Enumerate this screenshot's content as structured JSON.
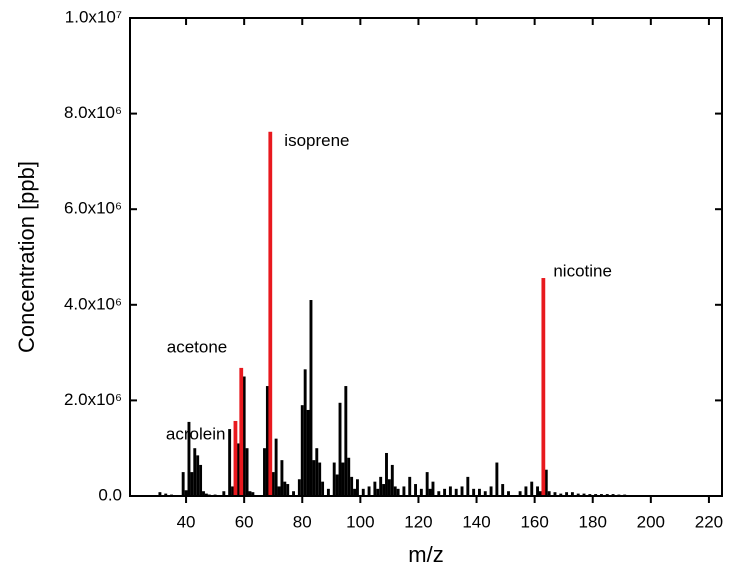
{
  "chart_data": {
    "type": "bar",
    "x_label": "m/z",
    "y_label": "Concentration [ppb]",
    "xlim": [
      20.7,
      224.5
    ],
    "ylim": [
      0,
      10000000
    ],
    "xticks": [
      40,
      60,
      80,
      100,
      120,
      140,
      160,
      180,
      200,
      220
    ],
    "yticks": [
      {
        "value": 0,
        "label": "0.0"
      },
      {
        "value": 2000000,
        "label": "2.0x10⁶"
      },
      {
        "value": 4000000,
        "label": "4.0x10⁶"
      },
      {
        "value": 6000000,
        "label": "6.0x10⁶"
      },
      {
        "value": 8000000,
        "label": "8.0x10⁶"
      },
      {
        "value": 10000000,
        "label": "1.0x10⁷"
      }
    ],
    "series": [
      {
        "color": "#000000",
        "x": [
          31,
          33,
          35,
          39,
          40,
          41,
          42,
          43,
          44,
          45,
          46,
          47,
          48,
          50,
          53,
          55,
          56,
          58,
          60,
          61,
          62,
          63,
          67,
          68,
          70,
          71,
          72,
          73,
          74,
          75,
          77,
          79,
          80,
          81,
          82,
          83,
          84,
          85,
          86,
          87,
          89,
          91,
          92,
          93,
          94,
          95,
          96,
          97,
          98,
          99,
          101,
          103,
          105,
          106,
          107,
          108,
          109,
          110,
          111,
          112,
          113,
          115,
          117,
          119,
          121,
          123,
          124,
          125,
          127,
          129,
          131,
          133,
          135,
          137,
          139,
          141,
          143,
          145,
          147,
          149,
          151,
          155,
          157,
          159,
          161,
          162,
          164,
          165,
          167,
          169,
          171,
          173,
          175,
          177,
          179,
          181,
          183,
          185,
          187,
          189,
          191
        ],
        "values": [
          80000,
          50000,
          30000,
          500000,
          120000,
          1550000,
          500000,
          1000000,
          850000,
          650000,
          100000,
          50000,
          30000,
          30000,
          100000,
          1400000,
          200000,
          1100000,
          2500000,
          1000000,
          100000,
          80000,
          1000000,
          2300000,
          500000,
          1200000,
          200000,
          750000,
          300000,
          250000,
          100000,
          350000,
          1900000,
          2650000,
          1800000,
          4100000,
          750000,
          1000000,
          700000,
          300000,
          150000,
          700000,
          450000,
          1950000,
          700000,
          2300000,
          800000,
          400000,
          150000,
          350000,
          150000,
          200000,
          300000,
          150000,
          400000,
          250000,
          900000,
          350000,
          650000,
          200000,
          150000,
          200000,
          400000,
          250000,
          150000,
          500000,
          150000,
          300000,
          100000,
          150000,
          200000,
          150000,
          200000,
          400000,
          150000,
          150000,
          100000,
          200000,
          700000,
          250000,
          100000,
          100000,
          200000,
          300000,
          200000,
          100000,
          550000,
          100000,
          80000,
          50000,
          80000,
          80000,
          50000,
          50000,
          40000,
          40000,
          40000,
          40000,
          40000,
          30000,
          30000
        ]
      },
      {
        "color": "#e8191e",
        "x": [
          57,
          59,
          69,
          163
        ],
        "values": [
          1570000,
          2680000,
          7620000,
          4560000
        ],
        "annotations": [
          "acrolein",
          "acetone",
          "isoprene",
          "nicotine"
        ]
      }
    ]
  }
}
